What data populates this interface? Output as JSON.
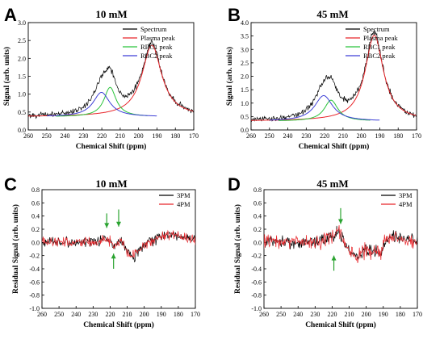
{
  "colors": {
    "spectrum": "#000000",
    "plasma": "#e8262b",
    "rbc1": "#2bc43c",
    "rbc2": "#3d3fd6",
    "pm3": "#000000",
    "pm4": "#e8262b",
    "arrow": "#2aa330"
  },
  "chart_data": [
    {
      "panel": "A",
      "type": "line",
      "title": "10 mM",
      "xlabel": "Chemical Shift (ppm)",
      "ylabel": "Signal (arb. units)",
      "xlim": [
        260,
        170
      ],
      "ylim": [
        0,
        3.0
      ],
      "xticks": [
        "260",
        "250",
        "240",
        "230",
        "220",
        "210",
        "200",
        "190",
        "180",
        "170"
      ],
      "yticks": [
        "0.0",
        "0.5",
        "1.0",
        "1.5",
        "2.0",
        "2.5",
        "3.0"
      ],
      "legend": [
        "Spectrum",
        "Plasma peak",
        "RBC1 peak",
        "RBC2 peak"
      ],
      "legend_position": "top-right",
      "peaks": {
        "baseline": 0.37,
        "plasma": {
          "center": 192.8,
          "height": 2.0,
          "width": 6.5
        },
        "rbc1": {
          "center": 215.5,
          "height": 0.82,
          "width": 4.0
        },
        "rbc2": {
          "center": 220.2,
          "height": 0.68,
          "width": 5.5
        }
      },
      "noise": 0.06
    },
    {
      "panel": "B",
      "type": "line",
      "title": "45 mM",
      "xlabel": "Chemical Shift (ppm)",
      "ylabel": "Signal (arb. units)",
      "xlim": [
        260,
        170
      ],
      "ylim": [
        0,
        4.0
      ],
      "xticks": [
        "260",
        "250",
        "240",
        "230",
        "220",
        "210",
        "200",
        "190",
        "180",
        "170"
      ],
      "yticks": [
        "0.0",
        "0.5",
        "1.0",
        "1.5",
        "2.0",
        "2.5",
        "3.0",
        "3.5",
        "4.0"
      ],
      "legend": [
        "Spectrum",
        "Plasma peak",
        "RBC1 peak",
        "RBC2 peak"
      ],
      "legend_position": "top-right",
      "peaks": {
        "baseline": 0.33,
        "plasma": {
          "center": 193.0,
          "height": 3.2,
          "width": 6.0
        },
        "rbc1": {
          "center": 216.5,
          "height": 0.78,
          "width": 4.5
        },
        "rbc2": {
          "center": 220.5,
          "height": 0.95,
          "width": 6.0
        }
      },
      "noise": 0.08
    },
    {
      "panel": "C",
      "type": "line",
      "title": "10 mM",
      "xlabel": "Chemical Shift (ppm)",
      "ylabel": "Residual Signal (arb. units)",
      "xlim": [
        260,
        170
      ],
      "ylim": [
        -1.0,
        0.8
      ],
      "xticks": [
        "260",
        "250",
        "240",
        "230",
        "220",
        "210",
        "200",
        "190",
        "180",
        "170"
      ],
      "yticks": [
        "-1.0",
        "-0.8",
        "-0.6",
        "-0.4",
        "-0.2",
        "0.0",
        "0.2",
        "0.4",
        "0.6",
        "0.8"
      ],
      "legend": [
        "3PM",
        "4PM"
      ],
      "legend_position": "top-right",
      "arrows": [
        {
          "x": 222,
          "from": 0.44,
          "to": 0.22,
          "dir": "down"
        },
        {
          "x": 215,
          "from": 0.5,
          "to": 0.24,
          "dir": "down"
        },
        {
          "x": 218,
          "from": -0.4,
          "to": -0.17,
          "dir": "up"
        }
      ],
      "noise": 0.07
    },
    {
      "panel": "D",
      "type": "line",
      "title": "45 mM",
      "xlabel": "Chemical Shift (ppm)",
      "ylabel": "Residual Signal (arb. units)",
      "xlim": [
        260,
        170
      ],
      "ylim": [
        -1.0,
        0.8
      ],
      "xticks": [
        "260",
        "250",
        "240",
        "230",
        "220",
        "210",
        "200",
        "190",
        "180",
        "170"
      ],
      "yticks": [
        "-1.0",
        "-0.8",
        "-0.6",
        "-0.4",
        "-0.2",
        "0.0",
        "0.2",
        "0.4",
        "0.6",
        "0.8"
      ],
      "legend": [
        "3PM",
        "4PM"
      ],
      "legend_position": "top-right",
      "arrows": [
        {
          "x": 215,
          "from": 0.52,
          "to": 0.28,
          "dir": "down"
        },
        {
          "x": 219,
          "from": -0.43,
          "to": -0.2,
          "dir": "up"
        }
      ],
      "noise": 0.1
    }
  ]
}
